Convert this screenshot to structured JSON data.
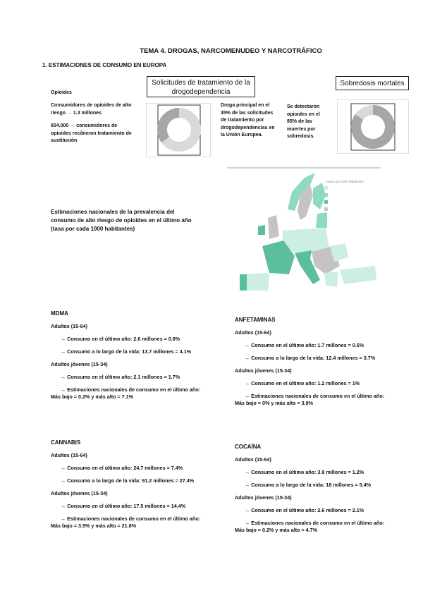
{
  "title": "TEMA 4. DROGAS, NARCOMENUDEO Y NARCOTRÁFICO",
  "section": "1.   ESTIMACIONES DE CONSUMO EN EUROPA",
  "opioides": {
    "heading": "Opioides",
    "line1": "Consumidores de opioides de alto riesgo → 1.3 millones",
    "line2": "654.000 → consumidores de opioides recibieron tratamiento de sustitución"
  },
  "treatment": {
    "box_label": "Solicitudes de tratamiento de la drogodependencia",
    "text": "Droga principal en el 35% de las solicitudes de tratamiento por drogodependencias en la Unión Europea.",
    "donut_percent": 35
  },
  "overdose": {
    "box_label": "Sobredosis mortales",
    "text": "Se detectaron opioides en el 85% de las muertes por sobredosis.",
    "donut_percent": 85
  },
  "map": {
    "caption": "Estimaciones nacionales de la prevalencia del consumo de alto riesgo de opioides en el último año (tasa por cada 1000 habitantes)",
    "legend_title": "Casos por 1000 habitantes",
    "colors": {
      "low": "#cdeee2",
      "mid": "#8fd9bd",
      "high": "#5cbf9b",
      "none": "#c4c4c4"
    }
  },
  "sections": {
    "mdma": {
      "heading": "MDMA",
      "adults": "Adultos (15-64)",
      "a1": "→ Consumo en el último año: 2.6 millones = 0.8%",
      "a2": "→ Consumo a lo largo de la vida: 13.7 millones = 4.1%",
      "young": "Adultos jóvenes (15-34)",
      "y1": "→ Consumo en el último año: 2.1 millones = 1.7%",
      "y2": "→ Estimaciones nacionales de consumo en el último año:",
      "y3": "Más bajo = 0.2% y más alto = 7.1%"
    },
    "anfetaminas": {
      "heading": "ANFETAMINAS",
      "adults": "Adultos (15-64)",
      "a1": "→ Consumo en el último año: 1.7 millones = 0.5%",
      "a2": "→ Consumo a lo largo de la vida: 12.4 millones = 3.7%",
      "young": "Adultos jóvenes (15-34)",
      "y1": "→ Consumo en el último año: 1.2 millones = 1%",
      "y2": "→ Estimaciones nacionales de consumo en el último año:",
      "y3": "Más bajo = 0% y más alto = 3.9%"
    },
    "cannabis": {
      "heading": "CANNABIS",
      "adults": "Adultos (15-64)",
      "a1": "→ Consumo en el último año: 24.7 millones = 7.4%",
      "a2": "→ Consumo a lo largo de la vida: 91.2 millones = 27.4%",
      "young": "Adultos jóvenes (15-34)",
      "y1": "→ Consumo en el último año: 17.5 millones = 14.4%",
      "y2": "→ Estimaciones nacionales de consumo en el último año:",
      "y3": "Más bajo = 3.5% y más alto = 21.8%"
    },
    "cocaina": {
      "heading": "COCAÍNA",
      "adults": "Adultos (15-64)",
      "a1": "→ Consumo en el último año: 3.9 millones = 1.2%",
      "a2": "→ Consumo a lo largo de la vida: 18 millones = 5.4%",
      "young": "Adultos jóvenes (15-34)",
      "y1": "→ Consumo en el último año: 2.6 millones = 2.1%",
      "y2": "→ Estimaciones nacionales de consumo en el último año:",
      "y3": "Más bajo = 0.2% y más alto = 4.7%"
    }
  }
}
